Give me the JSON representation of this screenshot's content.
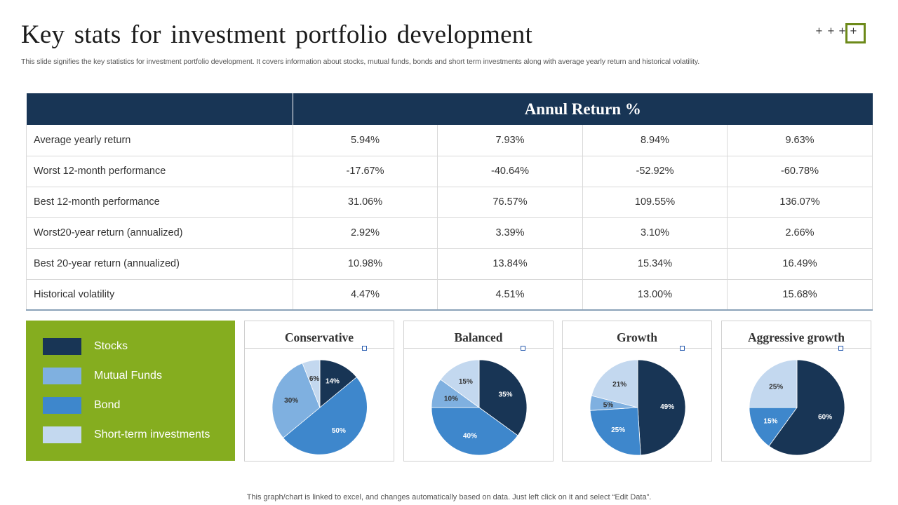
{
  "title": "Key stats for investment portfolio development",
  "subtitle": "This slide signifies the key statistics for investment portfolio development. It covers information about stocks, mutual funds, bonds and short term investments along with average yearly return and historical volatility.",
  "deco": {
    "plus": [
      "+",
      "+",
      "+",
      "+"
    ]
  },
  "table": {
    "header": "Annul Return %",
    "rows": [
      {
        "label": "Average yearly return",
        "values": [
          "5.94%",
          "7.93%",
          "8.94%",
          "9.63%"
        ]
      },
      {
        "label": "Worst 12-month performance",
        "values": [
          "-17.67%",
          "-40.64%",
          "-52.92%",
          "-60.78%"
        ]
      },
      {
        "label": "Best 12-month performance",
        "values": [
          "31.06%",
          "76.57%",
          "109.55%",
          "136.07%"
        ]
      },
      {
        "label": "Worst20-year return (annualized)",
        "values": [
          "2.92%",
          "3.39%",
          "3.10%",
          "2.66%"
        ]
      },
      {
        "label": "Best 20-year return (annualized)",
        "values": [
          "10.98%",
          "13.84%",
          "15.34%",
          "16.49%"
        ]
      },
      {
        "label": "Historical volatility",
        "values": [
          "4.47%",
          "4.51%",
          "13.00%",
          "15.68%"
        ]
      }
    ]
  },
  "colors": {
    "header_bg": "#183555",
    "legend_bg": "#85ad1f",
    "stocks": "#183555",
    "mutual_funds": "#7fb0e0",
    "bond": "#3e87cc",
    "short_term": "#c3d8ef"
  },
  "legend": [
    {
      "label": "Stocks",
      "color": "#183555"
    },
    {
      "label": "Mutual Funds",
      "color": "#7fb0e0"
    },
    {
      "label": "Bond",
      "color": "#3e87cc"
    },
    {
      "label": "Short-term  investments",
      "color": "#c3d8ef"
    }
  ],
  "chart_data": [
    {
      "type": "pie",
      "title": "Conservative",
      "categories": [
        "Stocks",
        "Bond",
        "Mutual Funds",
        "Short-term investments"
      ],
      "values": [
        14,
        50,
        30,
        6
      ],
      "labels": [
        "14%",
        "50%",
        "30%",
        "6%"
      ]
    },
    {
      "type": "pie",
      "title": "Balanced",
      "categories": [
        "Stocks",
        "Bond",
        "Mutual Funds",
        "Short-term investments"
      ],
      "values": [
        35,
        40,
        10,
        15
      ],
      "labels": [
        "35%",
        "40%",
        "10%",
        "15%"
      ]
    },
    {
      "type": "pie",
      "title": "Growth",
      "categories": [
        "Stocks",
        "Bond",
        "Mutual Funds",
        "Short-term investments"
      ],
      "values": [
        49,
        25,
        5,
        21
      ],
      "labels": [
        "49%",
        "25%",
        "5%",
        "21%"
      ]
    },
    {
      "type": "pie",
      "title": "Aggressive growth",
      "categories": [
        "Stocks",
        "Bond",
        "Short-term investments"
      ],
      "values": [
        60,
        15,
        25
      ],
      "labels": [
        "60%",
        "15%",
        "25%"
      ]
    }
  ],
  "footer": "This graph/chart is linked to excel,  and changes automatically based on data. Just left click on it and select “Edit Data”."
}
